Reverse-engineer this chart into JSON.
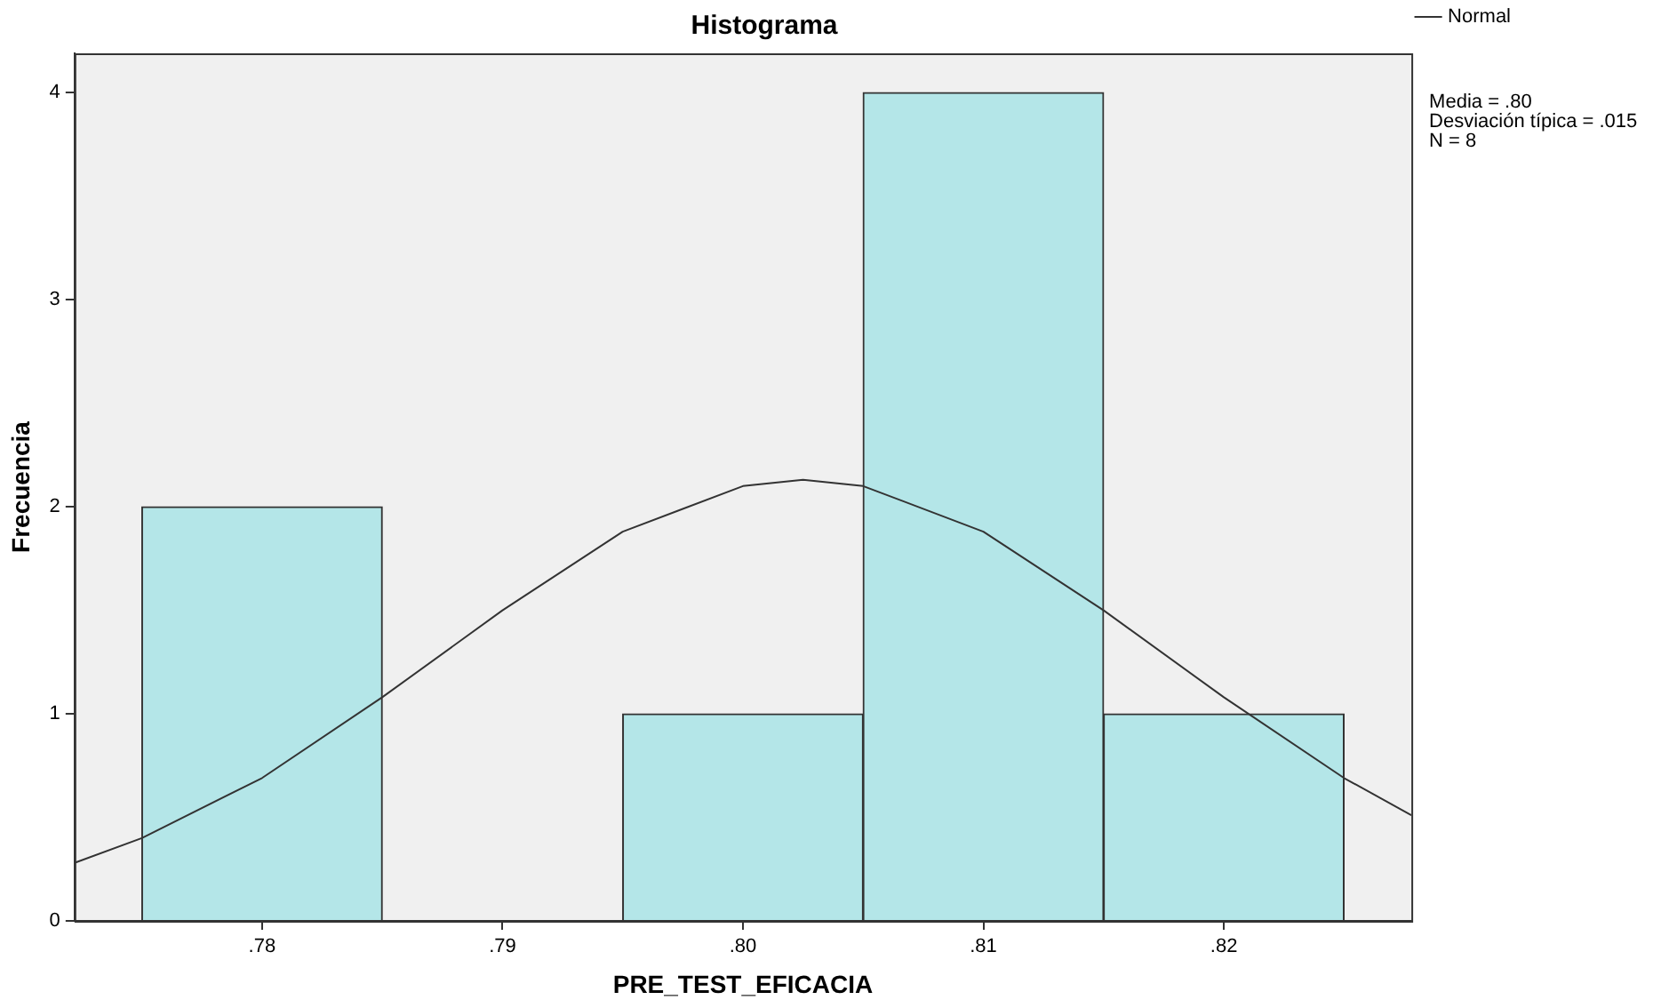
{
  "chart_data": {
    "type": "histogram",
    "title": "Histograma",
    "xlabel": "PRE_TEST_EFICACIA",
    "ylabel": "Frecuencia",
    "bins": [
      0.775,
      0.785,
      0.795,
      0.805,
      0.815,
      0.825
    ],
    "values": [
      2,
      0,
      1,
      4,
      1
    ],
    "color": "#b4e6e8",
    "series": [
      {
        "name": "Normal",
        "type": "line",
        "color": "#333333",
        "x": [
          0.7722,
          0.775,
          0.78,
          0.785,
          0.79,
          0.795,
          0.8,
          0.8025,
          0.805,
          0.81,
          0.815,
          0.82,
          0.825,
          0.8278
        ],
        "values": [
          0.28,
          0.4,
          0.69,
          1.08,
          1.5,
          1.88,
          2.1,
          2.13,
          2.1,
          1.88,
          1.5,
          1.08,
          0.69,
          0.51
        ]
      }
    ],
    "xlim": [
      0.7722,
      0.8278
    ],
    "ylim": [
      0,
      4.19
    ],
    "xticks": [
      {
        "value": 0.78,
        "label": ".78"
      },
      {
        "value": 0.79,
        "label": ".79"
      },
      {
        "value": 0.8,
        "label": ".80"
      },
      {
        "value": 0.81,
        "label": ".81"
      },
      {
        "value": 0.82,
        "label": ".82"
      }
    ],
    "yticks": [
      0,
      1,
      2,
      3,
      4
    ],
    "grid": false,
    "legend": "top right",
    "marker": "none",
    "line_style": "solid",
    "annotations": [
      "Media = .80",
      "Desviación típica = .015",
      "N = 8"
    ]
  }
}
